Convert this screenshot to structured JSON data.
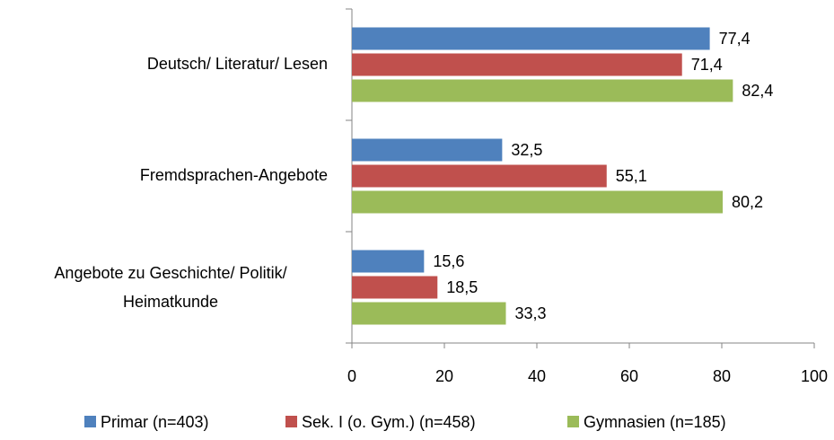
{
  "chart_data": {
    "type": "bar",
    "orientation": "horizontal",
    "categories": [
      "Deutsch/ Literatur/ Lesen",
      "Fremdsprachen-Angebote",
      "Angebote zu Geschichte/ Politik/ Heimatkunde"
    ],
    "series": [
      {
        "name": "Primar (n=403)",
        "color": "#4f81bd",
        "values": [
          77.4,
          32.5,
          15.6
        ],
        "value_labels": [
          "77,4",
          "32,5",
          "15,6"
        ]
      },
      {
        "name": "Sek. I (o. Gym.) (n=458)",
        "color": "#c0504d",
        "values": [
          71.4,
          55.1,
          18.5
        ],
        "value_labels": [
          "71,4",
          "55,1",
          "18,5"
        ]
      },
      {
        "name": "Gymnasien (n=185)",
        "color": "#9bbb59",
        "values": [
          82.4,
          80.2,
          33.3
        ],
        "value_labels": [
          "82,4",
          "80,2",
          "33,3"
        ]
      }
    ],
    "xlim": [
      0,
      100
    ],
    "xticks": [
      0,
      20,
      40,
      60,
      80,
      100
    ],
    "grid": false,
    "legend": "bottom"
  }
}
